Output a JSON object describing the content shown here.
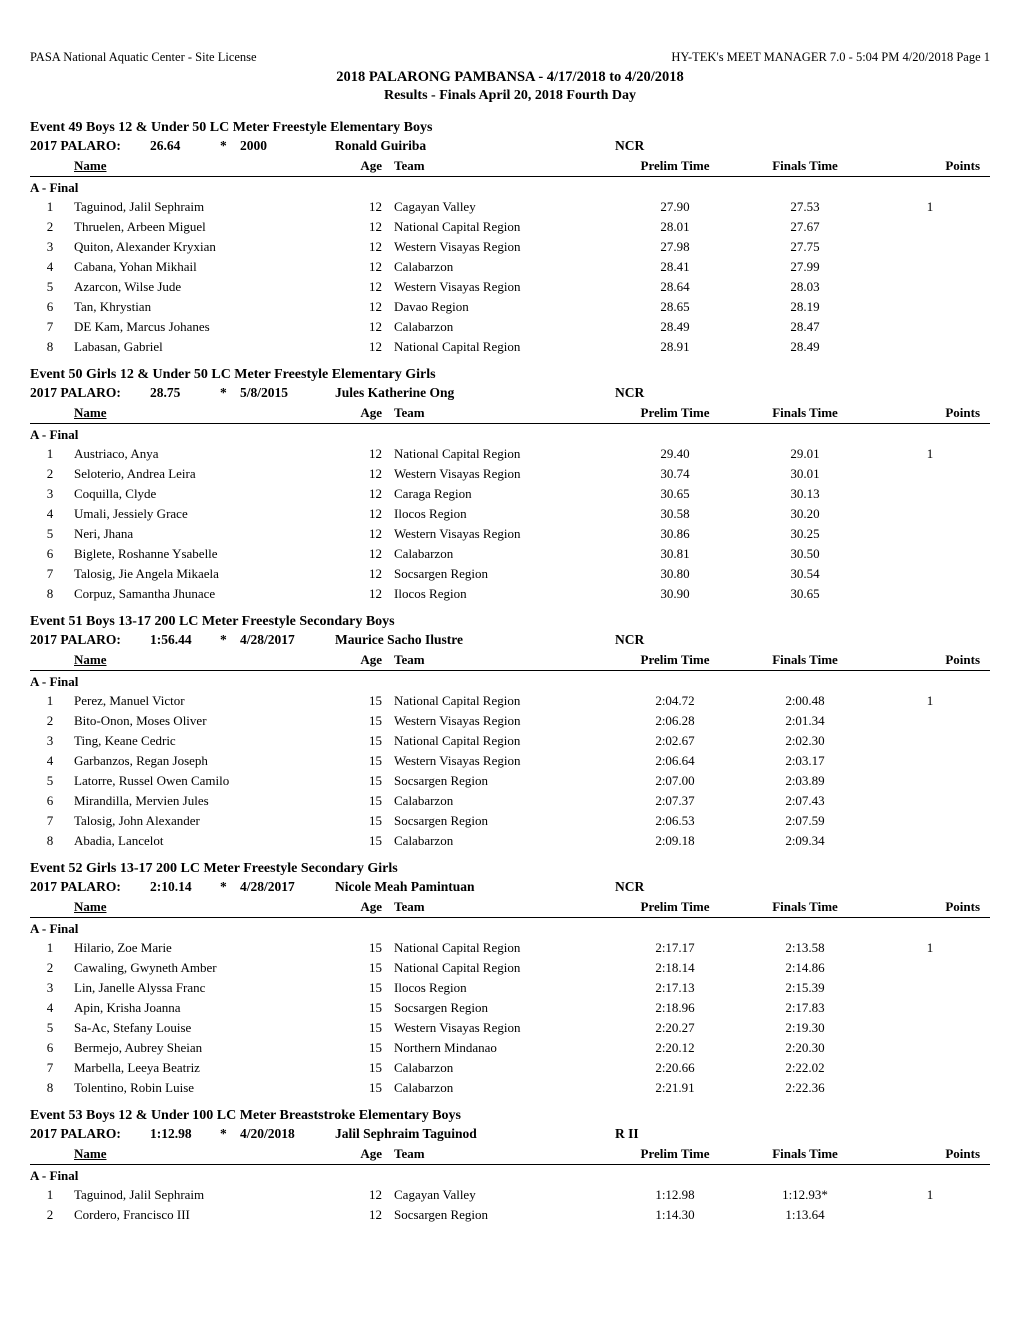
{
  "header": {
    "left": "PASA National Aquatic Center - Site License",
    "right": "HY-TEK's MEET MANAGER 7.0 - 5:04 PM  4/20/2018  Page 1",
    "title": "2018 PALARONG PAMBANSA - 4/17/2018 to 4/20/2018",
    "subtitle": "Results - Finals   April 20, 2018  Fourth Day"
  },
  "columns": {
    "name": "Name",
    "age": "Age",
    "team": "Team",
    "prelim": "Prelim Time",
    "finals": "Finals Time",
    "points": "Points"
  },
  "heat_label": "A - Final",
  "events": [
    {
      "title": "Event 49  Boys 12 & Under 50 LC Meter Freestyle Elementary Boys",
      "record": {
        "label": "2017 PALARO:",
        "time": "26.64",
        "marker": "*",
        "date": "2000",
        "holder": "Ronald Guiriba",
        "team": "NCR"
      },
      "results": [
        {
          "place": "1",
          "name": "Taguinod, Jalil Sephraim",
          "age": "12",
          "team": "Cagayan Valley",
          "prelim": "27.90",
          "finals": "27.53",
          "points": "1"
        },
        {
          "place": "2",
          "name": "Thruelen, Arbeen Miguel",
          "age": "12",
          "team": "National Capital Region",
          "prelim": "28.01",
          "finals": "27.67",
          "points": ""
        },
        {
          "place": "3",
          "name": "Quiton, Alexander Kryxian",
          "age": "12",
          "team": "Western Visayas Region",
          "prelim": "27.98",
          "finals": "27.75",
          "points": ""
        },
        {
          "place": "4",
          "name": "Cabana, Yohan Mikhail",
          "age": "12",
          "team": "Calabarzon",
          "prelim": "28.41",
          "finals": "27.99",
          "points": ""
        },
        {
          "place": "5",
          "name": "Azarcon, Wilse Jude",
          "age": "12",
          "team": "Western Visayas Region",
          "prelim": "28.64",
          "finals": "28.03",
          "points": ""
        },
        {
          "place": "6",
          "name": "Tan, Khrystian",
          "age": "12",
          "team": "Davao Region",
          "prelim": "28.65",
          "finals": "28.19",
          "points": ""
        },
        {
          "place": "7",
          "name": "DE Kam, Marcus Johanes",
          "age": "12",
          "team": "Calabarzon",
          "prelim": "28.49",
          "finals": "28.47",
          "points": ""
        },
        {
          "place": "8",
          "name": "Labasan, Gabriel",
          "age": "12",
          "team": "National Capital Region",
          "prelim": "28.91",
          "finals": "28.49",
          "points": ""
        }
      ]
    },
    {
      "title": "Event 50  Girls 12 & Under 50 LC Meter Freestyle Elementary Girls",
      "record": {
        "label": "2017 PALARO:",
        "time": "28.75",
        "marker": "*",
        "date": "5/8/2015",
        "holder": "Jules Katherine Ong",
        "team": "NCR"
      },
      "results": [
        {
          "place": "1",
          "name": "Austriaco, Anya",
          "age": "12",
          "team": "National Capital Region",
          "prelim": "29.40",
          "finals": "29.01",
          "points": "1"
        },
        {
          "place": "2",
          "name": "Seloterio, Andrea  Leira",
          "age": "12",
          "team": "Western Visayas Region",
          "prelim": "30.74",
          "finals": "30.01",
          "points": ""
        },
        {
          "place": "3",
          "name": "Coquilla, Clyde",
          "age": "12",
          "team": "Caraga Region",
          "prelim": "30.65",
          "finals": "30.13",
          "points": ""
        },
        {
          "place": "4",
          "name": "Umali, Jessiely Grace",
          "age": "12",
          "team": "Ilocos Region",
          "prelim": "30.58",
          "finals": "30.20",
          "points": ""
        },
        {
          "place": "5",
          "name": "Neri, Jhana",
          "age": "12",
          "team": "Western Visayas Region",
          "prelim": "30.86",
          "finals": "30.25",
          "points": ""
        },
        {
          "place": "6",
          "name": "Biglete, Roshanne Ysabelle",
          "age": "12",
          "team": "Calabarzon",
          "prelim": "30.81",
          "finals": "30.50",
          "points": ""
        },
        {
          "place": "7",
          "name": "Talosig, Jie Angela Mikaela",
          "age": "12",
          "team": "Socsargen  Region",
          "prelim": "30.80",
          "finals": "30.54",
          "points": ""
        },
        {
          "place": "8",
          "name": "Corpuz, Samantha Jhunace",
          "age": "12",
          "team": "Ilocos Region",
          "prelim": "30.90",
          "finals": "30.65",
          "points": ""
        }
      ]
    },
    {
      "title": "Event 51  Boys 13-17 200 LC Meter Freestyle Secondary Boys",
      "record": {
        "label": "2017 PALARO:",
        "time": "1:56.44",
        "marker": "*",
        "date": "4/28/2017",
        "holder": "Maurice Sacho Ilustre",
        "team": "NCR"
      },
      "results": [
        {
          "place": "1",
          "name": "Perez, Manuel Victor",
          "age": "15",
          "team": "National Capital Region",
          "prelim": "2:04.72",
          "finals": "2:00.48",
          "points": "1"
        },
        {
          "place": "2",
          "name": "Bito-Onon, Moses Oliver",
          "age": "15",
          "team": "Western Visayas Region",
          "prelim": "2:06.28",
          "finals": "2:01.34",
          "points": ""
        },
        {
          "place": "3",
          "name": "Ting, Keane Cedric",
          "age": "15",
          "team": "National Capital Region",
          "prelim": "2:02.67",
          "finals": "2:02.30",
          "points": ""
        },
        {
          "place": "4",
          "name": "Garbanzos, Regan Joseph",
          "age": "15",
          "team": "Western Visayas Region",
          "prelim": "2:06.64",
          "finals": "2:03.17",
          "points": ""
        },
        {
          "place": "5",
          "name": "Latorre, Russel Owen Camilo",
          "age": "15",
          "team": "Socsargen  Region",
          "prelim": "2:07.00",
          "finals": "2:03.89",
          "points": ""
        },
        {
          "place": "6",
          "name": "Mirandilla, Mervien Jules",
          "age": "15",
          "team": "Calabarzon",
          "prelim": "2:07.37",
          "finals": "2:07.43",
          "points": ""
        },
        {
          "place": "7",
          "name": "Talosig, John Alexander",
          "age": "15",
          "team": "Socsargen  Region",
          "prelim": "2:06.53",
          "finals": "2:07.59",
          "points": ""
        },
        {
          "place": "8",
          "name": "Abadia, Lancelot",
          "age": "15",
          "team": "Calabarzon",
          "prelim": "2:09.18",
          "finals": "2:09.34",
          "points": ""
        }
      ]
    },
    {
      "title": "Event 52  Girls 13-17 200 LC Meter Freestyle Secondary Girls",
      "record": {
        "label": "2017 PALARO:",
        "time": "2:10.14",
        "marker": "*",
        "date": "4/28/2017",
        "holder": "Nicole Meah Pamintuan",
        "team": "NCR"
      },
      "results": [
        {
          "place": "1",
          "name": "Hilario, Zoe Marie",
          "age": "15",
          "team": "National Capital Region",
          "prelim": "2:17.17",
          "finals": "2:13.58",
          "points": "1"
        },
        {
          "place": "2",
          "name": "Cawaling, Gwyneth Amber",
          "age": "15",
          "team": "National Capital Region",
          "prelim": "2:18.14",
          "finals": "2:14.86",
          "points": ""
        },
        {
          "place": "3",
          "name": "Lin, Janelle Alyssa Franc",
          "age": "15",
          "team": "Ilocos Region",
          "prelim": "2:17.13",
          "finals": "2:15.39",
          "points": ""
        },
        {
          "place": "4",
          "name": "Apin, Krisha Joanna",
          "age": "15",
          "team": "Socsargen  Region",
          "prelim": "2:18.96",
          "finals": "2:17.83",
          "points": ""
        },
        {
          "place": "5",
          "name": "Sa-Ac, Stefany Louise",
          "age": "15",
          "team": "Western Visayas Region",
          "prelim": "2:20.27",
          "finals": "2:19.30",
          "points": ""
        },
        {
          "place": "6",
          "name": "Bermejo, Aubrey Sheian",
          "age": "15",
          "team": "Northern Mindanao",
          "prelim": "2:20.12",
          "finals": "2:20.30",
          "points": ""
        },
        {
          "place": "7",
          "name": "Marbella, Leeya Beatriz",
          "age": "15",
          "team": "Calabarzon",
          "prelim": "2:20.66",
          "finals": "2:22.02",
          "points": ""
        },
        {
          "place": "8",
          "name": "Tolentino, Robin Luise",
          "age": "15",
          "team": "Calabarzon",
          "prelim": "2:21.91",
          "finals": "2:22.36",
          "points": ""
        }
      ]
    },
    {
      "title": "Event 53  Boys 12 & Under 100 LC Meter Breaststroke Elementary Boys",
      "record": {
        "label": "2017 PALARO:",
        "time": "1:12.98",
        "marker": "*",
        "date": "4/20/2018",
        "holder": "Jalil Sephraim Taguinod",
        "team": "R II"
      },
      "results": [
        {
          "place": "1",
          "name": "Taguinod, Jalil Sephraim",
          "age": "12",
          "team": "Cagayan Valley",
          "prelim": "1:12.98",
          "finals": "1:12.93*",
          "points": "1"
        },
        {
          "place": "2",
          "name": "Cordero, Francisco III",
          "age": "12",
          "team": "Socsargen  Region",
          "prelim": "1:14.30",
          "finals": "1:13.64",
          "points": ""
        }
      ]
    }
  ]
}
